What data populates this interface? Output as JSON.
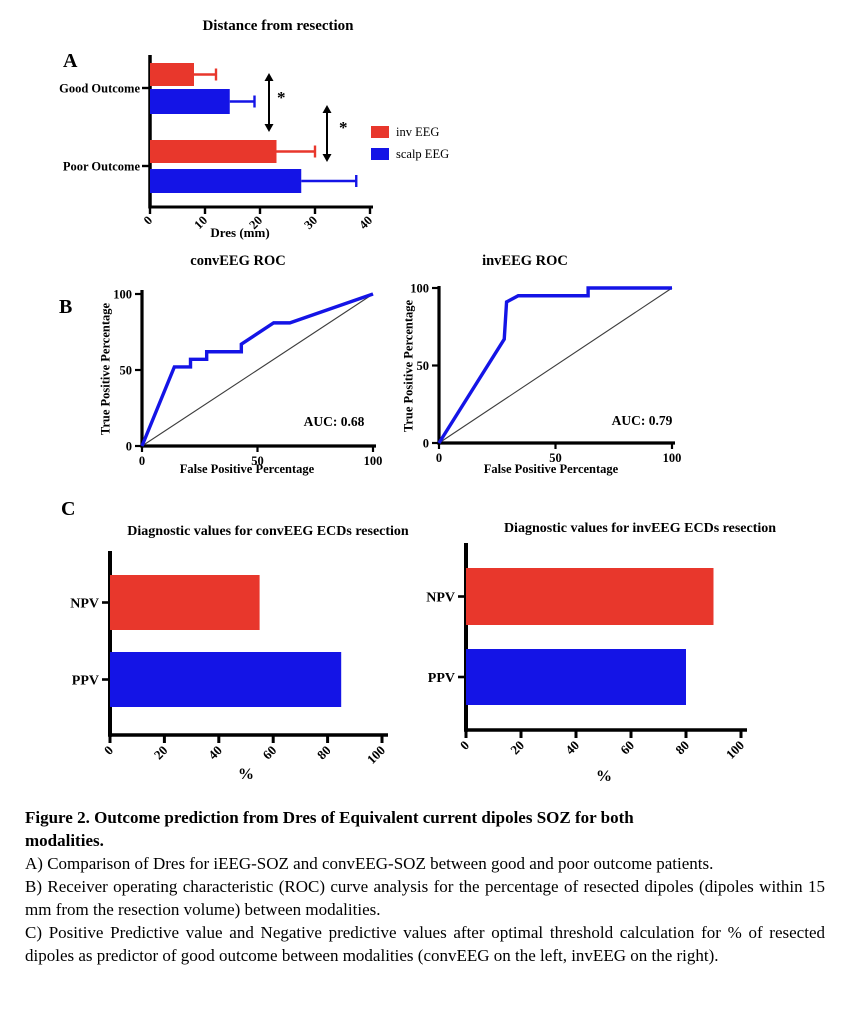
{
  "panels": {
    "a": "A",
    "b": "B",
    "c": "C"
  },
  "colors": {
    "inv_eeg_red": "#e8372c",
    "scalp_eeg_blue": "#1414e6",
    "axis_black": "#000000",
    "diagonal_gray": "#3d3d3d"
  },
  "legend": {
    "items": [
      {
        "label": "inv EEG",
        "color": "#e8372c"
      },
      {
        "label": "scalp EEG",
        "color": "#1414e6"
      }
    ]
  },
  "chart_data": [
    {
      "id": "distance_from_resection",
      "type": "bar",
      "orientation": "horizontal",
      "title": "Distance from resection",
      "xlabel": "Dres (mm)",
      "xlim": [
        0,
        40
      ],
      "xticks": [
        0,
        10,
        20,
        30,
        40
      ],
      "categories": [
        "Good Outcome",
        "Poor Outcome"
      ],
      "series": [
        {
          "name": "inv EEG",
          "color": "#e8372c",
          "values": [
            8,
            23
          ],
          "errors_plus": [
            4,
            7
          ]
        },
        {
          "name": "scalp EEG",
          "color": "#1414e6",
          "values": [
            14.5,
            27.5
          ],
          "errors_plus": [
            4.5,
            10
          ]
        }
      ],
      "significance_marks": [
        "*",
        "*"
      ],
      "legend_position": "right"
    },
    {
      "id": "conveeg_roc",
      "type": "line",
      "title": "convEEG ROC",
      "xlabel": "False Positive Percentage",
      "ylabel": "True Positive Percentage",
      "xlim": [
        0,
        100
      ],
      "ylim": [
        0,
        100
      ],
      "xticks": [
        0,
        50,
        100
      ],
      "yticks": [
        0,
        50,
        100
      ],
      "annotation": "AUC: 0.68",
      "line_color": "#1414e6",
      "roc_points": [
        [
          0,
          0
        ],
        [
          14,
          52
        ],
        [
          21,
          52
        ],
        [
          21,
          57
        ],
        [
          28,
          57
        ],
        [
          28,
          62
        ],
        [
          43,
          62
        ],
        [
          43,
          67
        ],
        [
          57,
          81
        ],
        [
          64,
          81
        ],
        [
          100,
          100
        ]
      ],
      "reference_line": [
        [
          0,
          0
        ],
        [
          100,
          100
        ]
      ]
    },
    {
      "id": "inveeg_roc",
      "type": "line",
      "title": "invEEG ROC",
      "xlabel": "False Positive Percentage",
      "ylabel": "True Positive Percentage",
      "xlim": [
        0,
        100
      ],
      "ylim": [
        0,
        100
      ],
      "xticks": [
        0,
        50,
        100
      ],
      "yticks": [
        0,
        50,
        100
      ],
      "annotation": "AUC: 0.79",
      "line_color": "#1414e6",
      "roc_points": [
        [
          0,
          0
        ],
        [
          28,
          67
        ],
        [
          29,
          91
        ],
        [
          34,
          95
        ],
        [
          64,
          95
        ],
        [
          64,
          100
        ],
        [
          100,
          100
        ]
      ],
      "reference_line": [
        [
          0,
          0
        ],
        [
          100,
          100
        ]
      ]
    },
    {
      "id": "conveeg_diagnostic",
      "type": "bar",
      "orientation": "horizontal",
      "title": "Diagnostic values for convEEG ECDs resection",
      "xlabel": "%",
      "xlim": [
        0,
        100
      ],
      "xticks": [
        0,
        20,
        40,
        60,
        80,
        100
      ],
      "categories": [
        "NPV",
        "PPV"
      ],
      "values": [
        55,
        85
      ],
      "bar_colors": [
        "#e8372c",
        "#1414e6"
      ]
    },
    {
      "id": "inveeg_diagnostic",
      "type": "bar",
      "orientation": "horizontal",
      "title": "Diagnostic values for invEEG ECDs resection",
      "xlabel": "%",
      "xlim": [
        0,
        100
      ],
      "xticks": [
        0,
        20,
        40,
        60,
        80,
        100
      ],
      "categories": [
        "NPV",
        "PPV"
      ],
      "values": [
        90,
        80
      ],
      "bar_colors": [
        "#e8372c",
        "#1414e6"
      ]
    }
  ],
  "caption": {
    "title_lines": [
      "Figure 2. Outcome prediction from Dres of Equivalent current dipoles SOZ for both",
      "modalities."
    ],
    "item_a": "A) Comparison of Dres for iEEG-SOZ and convEEG-SOZ between good and poor outcome patients.",
    "item_b": "B) Receiver operating characteristic (ROC) curve analysis for the percentage of resected dipoles (dipoles within 15 mm from the resection volume) between modalities.",
    "item_c": "C) Positive Predictive value and Negative predictive values after optimal threshold calculation for % of resected dipoles as predictor of good outcome between modalities (convEEG on the left, invEEG on the right)."
  }
}
